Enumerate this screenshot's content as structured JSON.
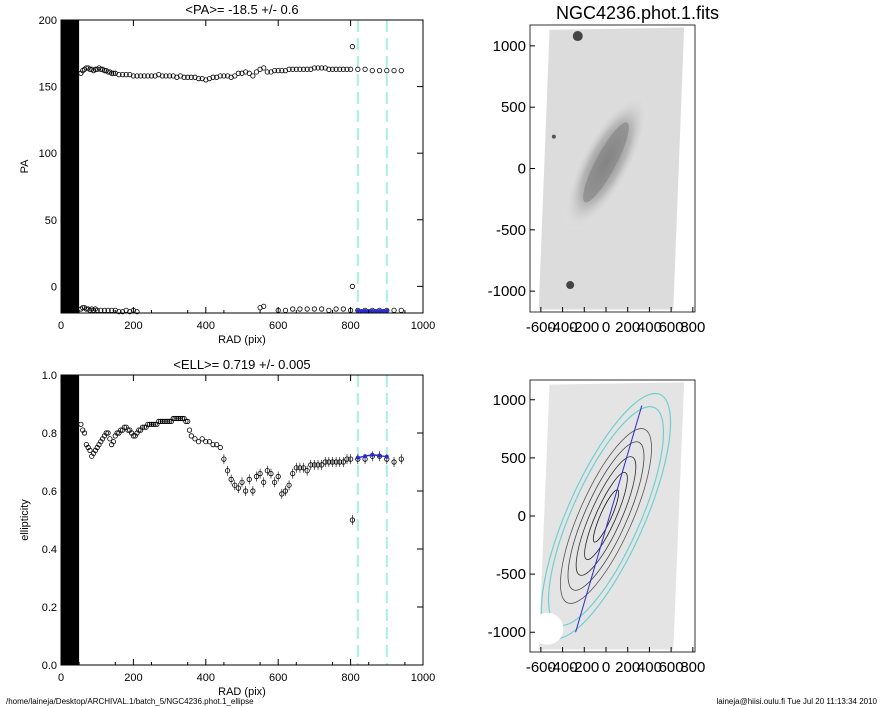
{
  "footer": {
    "left": "/home/laineja/Desktop/ARCHIVAL.1/batch_5/NGC4236.phot.1_ellipse",
    "right": "laineja@hiisi.oulu.fi  Tue Jul 20 11:13:34 2010"
  },
  "chart_data": [
    {
      "type": "scatter",
      "title": "<PA>= -18.5 +/-   0.6",
      "xlabel": "RAD (pix)",
      "ylabel": "PA",
      "xlim": [
        0,
        1000
      ],
      "ylim": [
        -20,
        200
      ],
      "xticks": [
        "0",
        "200",
        "400",
        "600",
        "800",
        "1000"
      ],
      "yticks": [
        "0",
        "50",
        "100",
        "150",
        "200"
      ],
      "yticks_values": [
        0,
        50,
        100,
        150,
        200
      ],
      "xticks_values": [
        0,
        200,
        400,
        600,
        800,
        1000
      ],
      "marker_color": "#000000",
      "fit_color": "#2a2ad0",
      "vline_color": "#a8f0e0",
      "vlines": [
        820,
        900
      ],
      "blackout_range": [
        0,
        50
      ],
      "series": [
        {
          "x": [
            55,
            60,
            65,
            70,
            75,
            80,
            85,
            90,
            95,
            100,
            105,
            110,
            115,
            120,
            125,
            130,
            135,
            140,
            145,
            150,
            160,
            170,
            180,
            190,
            200,
            210,
            220,
            230,
            240,
            250,
            260,
            270,
            280,
            290,
            300,
            310,
            320,
            330,
            340,
            350,
            360,
            370,
            380,
            390,
            400,
            410,
            420,
            430,
            440,
            450,
            460,
            470,
            480,
            490,
            500,
            510,
            520,
            530,
            540,
            550,
            560,
            570,
            580,
            590,
            600,
            610,
            620,
            630,
            640,
            650,
            660,
            670,
            680,
            690,
            700,
            710,
            720,
            730,
            740,
            750,
            760,
            770,
            780,
            790,
            800,
            820,
            840,
            860,
            880,
            900,
            920,
            940
          ],
          "y": [
            160,
            162,
            163,
            164,
            164,
            163,
            163,
            162,
            163,
            163,
            164,
            163,
            163,
            162,
            162,
            161,
            161,
            160,
            160,
            160,
            159,
            159,
            159,
            159,
            158,
            158,
            158,
            158,
            158,
            158,
            158,
            159,
            158,
            158,
            158,
            158,
            157,
            158,
            157,
            157,
            157,
            157,
            156,
            156,
            155,
            156,
            157,
            157,
            158,
            158,
            158,
            157,
            158,
            160,
            160,
            161,
            160,
            158,
            161,
            163,
            164,
            161,
            161,
            162,
            162,
            162,
            162,
            163,
            163,
            163,
            163,
            163,
            163,
            163,
            164,
            164,
            164,
            164,
            163,
            163,
            163,
            163,
            163,
            163,
            163,
            163,
            163,
            162,
            162,
            162,
            162,
            162
          ]
        },
        {
          "x": [
            55,
            60,
            65,
            70,
            75,
            80,
            85,
            90,
            95,
            100,
            110,
            120,
            130,
            140,
            150,
            160,
            170,
            180,
            190,
            200,
            210,
            550,
            560,
            600,
            620,
            640,
            660,
            680,
            700,
            720,
            740,
            760,
            780,
            800,
            820,
            840,
            860,
            880,
            900,
            920,
            940
          ],
          "y": [
            -17,
            -16,
            -16,
            -17,
            -17,
            -18,
            -17,
            -18,
            -17,
            -18,
            -18,
            -18,
            -18,
            -18,
            -18,
            -19,
            -19,
            -18,
            -19,
            -18,
            -19,
            -16,
            -15,
            -18,
            -18,
            -17,
            -17,
            -17,
            -17,
            -17,
            -18,
            -17,
            -17,
            -18,
            -18,
            -18,
            -18,
            -18,
            -18,
            -18,
            -18
          ]
        },
        {
          "x": [
            805,
            805
          ],
          "y": [
            180,
            0
          ]
        }
      ],
      "fit_x": [
        820,
        830,
        840,
        850,
        860,
        870,
        880,
        890,
        900
      ],
      "fit_y": [
        -18.5,
        -18.5,
        -18.5,
        -18.5,
        -18.5,
        -18.5,
        -18.5,
        -18.5,
        -18.5
      ]
    },
    {
      "type": "scatter",
      "title": "<ELL>= 0.719 +/-  0.005",
      "xlabel": "RAD (pix)",
      "ylabel": "ellipticity",
      "xlim": [
        0,
        1000
      ],
      "ylim": [
        0,
        1
      ],
      "xticks": [
        "0",
        "200",
        "400",
        "600",
        "800",
        "1000"
      ],
      "yticks": [
        "0.0",
        "0.2",
        "0.4",
        "0.6",
        "0.8",
        "1.0"
      ],
      "yticks_values": [
        0,
        0.2,
        0.4,
        0.6,
        0.8,
        1.0
      ],
      "xticks_values": [
        0,
        200,
        400,
        600,
        800,
        1000
      ],
      "vlines": [
        820,
        900
      ],
      "blackout_range": [
        0,
        50
      ],
      "series": [
        {
          "x": [
            55,
            60,
            65,
            70,
            75,
            80,
            85,
            90,
            95,
            100,
            105,
            110,
            115,
            120,
            125,
            130,
            135,
            140,
            145,
            150,
            155,
            160,
            165,
            170,
            175,
            180,
            185,
            190,
            195,
            200,
            205,
            210,
            215,
            220,
            225,
            230,
            235,
            240,
            245,
            250,
            255,
            260,
            265,
            270,
            275,
            280,
            285,
            290,
            295,
            300,
            305,
            310,
            315,
            320,
            325,
            330,
            335,
            340,
            345,
            350,
            355,
            360,
            370,
            380,
            390,
            400,
            410,
            420,
            430,
            440,
            450,
            460,
            470,
            480,
            490,
            500,
            510,
            520,
            530,
            540,
            550,
            560,
            570,
            580,
            590,
            600,
            610,
            620,
            630,
            640,
            650,
            660,
            670,
            680,
            690,
            700,
            710,
            720,
            730,
            740,
            750,
            760,
            770,
            780,
            790,
            800,
            820,
            840,
            860,
            880,
            900,
            920,
            940
          ],
          "y": [
            0.83,
            0.81,
            0.8,
            0.76,
            0.75,
            0.74,
            0.72,
            0.73,
            0.74,
            0.75,
            0.76,
            0.77,
            0.78,
            0.79,
            0.8,
            0.8,
            0.78,
            0.76,
            0.77,
            0.79,
            0.8,
            0.8,
            0.81,
            0.81,
            0.82,
            0.82,
            0.81,
            0.81,
            0.8,
            0.79,
            0.79,
            0.8,
            0.81,
            0.81,
            0.82,
            0.82,
            0.82,
            0.83,
            0.83,
            0.83,
            0.83,
            0.83,
            0.83,
            0.84,
            0.84,
            0.84,
            0.84,
            0.84,
            0.84,
            0.84,
            0.84,
            0.85,
            0.85,
            0.85,
            0.85,
            0.85,
            0.85,
            0.85,
            0.84,
            0.84,
            0.81,
            0.79,
            0.78,
            0.77,
            0.78,
            0.77,
            0.77,
            0.76,
            0.76,
            0.75,
            0.71,
            0.67,
            0.64,
            0.62,
            0.61,
            0.63,
            0.6,
            0.64,
            0.6,
            0.65,
            0.66,
            0.63,
            0.67,
            0.66,
            0.63,
            0.65,
            0.59,
            0.6,
            0.62,
            0.66,
            0.68,
            0.68,
            0.68,
            0.67,
            0.69,
            0.69,
            0.69,
            0.69,
            0.7,
            0.7,
            0.7,
            0.7,
            0.7,
            0.7,
            0.71,
            0.71,
            0.71,
            0.71,
            0.72,
            0.72,
            0.71,
            0.7,
            0.71
          ]
        },
        {
          "x": [
            805
          ],
          "y": [
            0.5
          ]
        }
      ],
      "fit_x": [
        820,
        840,
        860,
        880,
        900
      ],
      "fit_y": [
        0.715,
        0.72,
        0.725,
        0.722,
        0.718
      ]
    }
  ],
  "images": [
    {
      "title": "NGC4236.phot.1.fits",
      "xticks": [
        "-600",
        "-400",
        "-200",
        "0",
        "200",
        "400",
        "600",
        "800"
      ],
      "yticks": [
        "1000",
        "500",
        "0",
        "-500",
        "-1000"
      ],
      "xticks_values": [
        -600,
        -400,
        -200,
        0,
        200,
        400,
        600,
        800
      ],
      "yticks_values": [
        1000,
        500,
        0,
        -500,
        -1000
      ]
    },
    {
      "title": "",
      "xticks": [
        "-600",
        "-400",
        "-200",
        "0",
        "200",
        "400",
        "600",
        "800"
      ],
      "yticks": [
        "1000",
        "500",
        "0",
        "-500",
        "-1000"
      ],
      "xticks_values": [
        -600,
        -400,
        -200,
        0,
        200,
        400,
        600,
        800
      ],
      "yticks_values": [
        1000,
        500,
        0,
        -500,
        -1000
      ]
    }
  ]
}
